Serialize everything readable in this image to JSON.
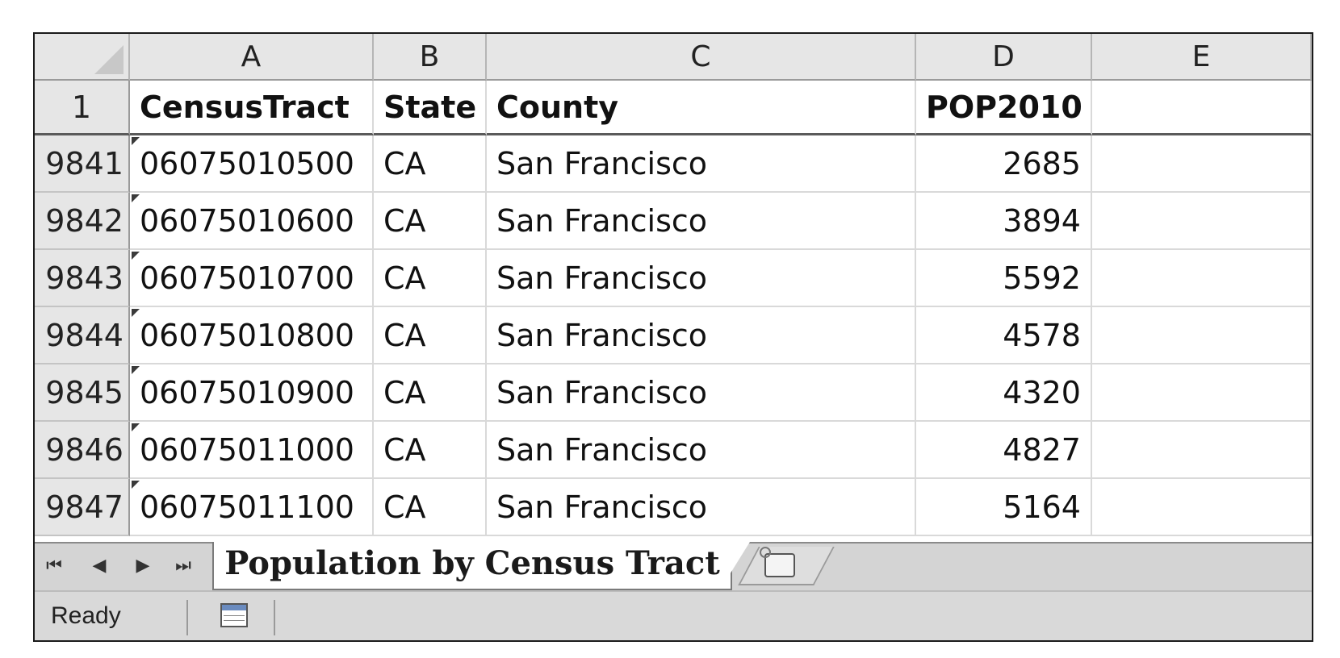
{
  "columns": [
    "A",
    "B",
    "C",
    "D",
    "E"
  ],
  "header_row": {
    "row_number": "1",
    "cells": [
      "CensusTract",
      "State",
      "County",
      "POP2010",
      ""
    ]
  },
  "rows": [
    {
      "row_number": "9841",
      "tract": "06075010500",
      "state": "CA",
      "county": "San Francisco",
      "pop": "2685"
    },
    {
      "row_number": "9842",
      "tract": "06075010600",
      "state": "CA",
      "county": "San Francisco",
      "pop": "3894"
    },
    {
      "row_number": "9843",
      "tract": "06075010700",
      "state": "CA",
      "county": "San Francisco",
      "pop": "5592"
    },
    {
      "row_number": "9844",
      "tract": "06075010800",
      "state": "CA",
      "county": "San Francisco",
      "pop": "4578"
    },
    {
      "row_number": "9845",
      "tract": "06075010900",
      "state": "CA",
      "county": "San Francisco",
      "pop": "4320"
    },
    {
      "row_number": "9846",
      "tract": "06075011000",
      "state": "CA",
      "county": "San Francisco",
      "pop": "4827"
    },
    {
      "row_number": "9847",
      "tract": "06075011100",
      "state": "CA",
      "county": "San Francisco",
      "pop": "5164"
    }
  ],
  "sheet_nav": {
    "first": "⏮",
    "prev": "◀",
    "next": "▶",
    "last": "⏭"
  },
  "sheet_tab": "Population by Census Tract",
  "status": "Ready"
}
